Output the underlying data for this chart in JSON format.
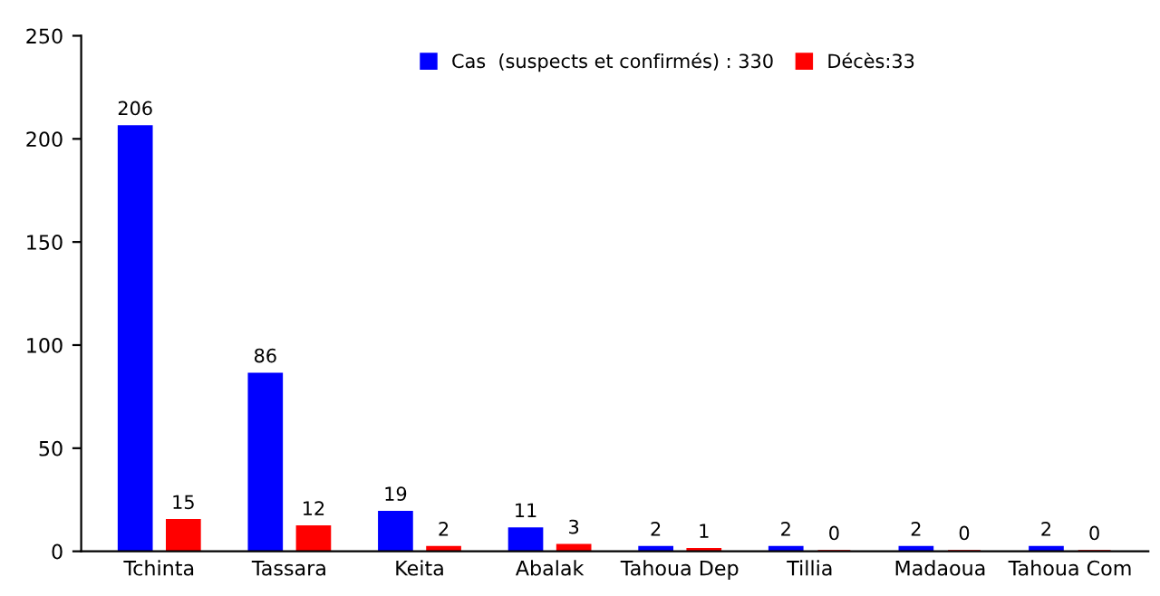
{
  "chart_data": {
    "type": "bar",
    "categories": [
      "Tchinta",
      "Tassara",
      "Keita",
      "Abalak",
      "Tahoua Dep",
      "Tillia",
      "Madaoua",
      "Tahoua Com"
    ],
    "series": [
      {
        "name": "Cas  (suspects et confirmés) : 330",
        "color": "#0000ff",
        "values": [
          206,
          86,
          19,
          11,
          2,
          2,
          2,
          2
        ]
      },
      {
        "name": "Décès:33",
        "color": "#ff0000",
        "values": [
          15,
          12,
          2,
          3,
          1,
          0,
          0,
          0
        ]
      }
    ],
    "ylim": [
      0,
      250
    ],
    "yticks": [
      0,
      50,
      100,
      150,
      200,
      250
    ],
    "grid": false,
    "legend": "top",
    "data_labels": true
  }
}
